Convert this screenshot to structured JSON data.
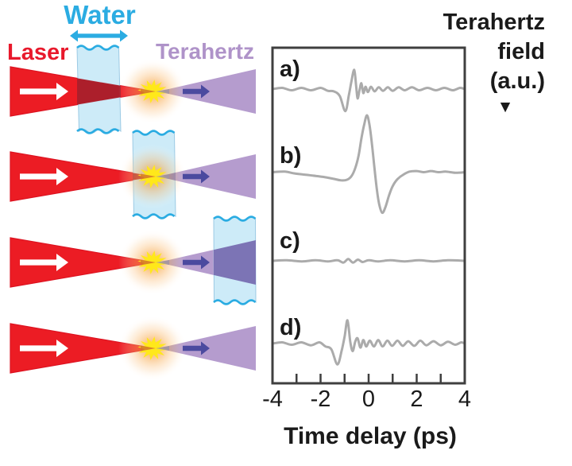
{
  "diagram": {
    "laser_label": "Laser",
    "water_label": "Water",
    "terahertz_label": "Terahertz",
    "colors": {
      "laser_red": "#EC1C24",
      "laser_in_water": "#AC1F2B",
      "water_fill": "#C9E9F8",
      "water_edge": "#2BACE2",
      "water_text": "#2BACE2",
      "laser_text": "#E8192C",
      "terahertz_purple": "#B59CCE",
      "terahertz_near_focus": "#9B93A4",
      "terahertz_in_water": "#7C74B5",
      "terahertz_text": "#AF93C9",
      "focus_star_yellow": "#FFE81A",
      "focus_glow_orange": "#F7941D",
      "beam_arrow_dark": "#4B4A9F",
      "beam_arrow_white": "#FFFFFF"
    },
    "rows": [
      {
        "trace": "a)",
        "water_position": "before-focus"
      },
      {
        "trace": "b)",
        "water_position": "at-focus"
      },
      {
        "trace": "c)",
        "water_position": "after-focus"
      },
      {
        "trace": "d)",
        "water_position": "none"
      }
    ]
  },
  "chart_data": {
    "type": "line",
    "title": "",
    "xlabel": "Time delay (ps)",
    "ylabel_lines": [
      "Terahertz",
      "field",
      "(a.u.)"
    ],
    "ylabel_pointer": "▼",
    "xlim": [
      -4,
      4
    ],
    "ylim_au": [
      -1,
      1.2
    ],
    "grid": false,
    "legend_position": "labels-inside-left",
    "trace_color": "#ABABAB",
    "frame_color": "#3F3F3F",
    "xticks_minor": [
      -4,
      -3,
      -2,
      -1,
      0,
      1,
      2,
      3,
      4
    ],
    "xtick_labels": [
      {
        "t": -4,
        "label": "-4"
      },
      {
        "t": -2,
        "label": "-2"
      },
      {
        "t": 0,
        "label": "0"
      },
      {
        "t": 2,
        "label": "2"
      },
      {
        "t": 4,
        "label": "4"
      }
    ],
    "series": [
      {
        "name": "a)",
        "points": [
          [
            -4,
            0
          ],
          [
            -3.6,
            0.02
          ],
          [
            -3.2,
            -0.02
          ],
          [
            -2.8,
            0.02
          ],
          [
            -2.4,
            -0.02
          ],
          [
            -2.0,
            0.02
          ],
          [
            -1.7,
            -0.03
          ],
          [
            -1.45,
            -0.04
          ],
          [
            -1.2,
            -0.12
          ],
          [
            -0.97,
            -0.38
          ],
          [
            -0.82,
            -0.1
          ],
          [
            -0.72,
            0.12
          ],
          [
            -0.6,
            0.33
          ],
          [
            -0.52,
            0.05
          ],
          [
            -0.46,
            -0.16
          ],
          [
            -0.38,
            -0.02
          ],
          [
            -0.3,
            0.1
          ],
          [
            -0.22,
            -0.07
          ],
          [
            -0.13,
            0.04
          ],
          [
            -0.03,
            -0.05
          ],
          [
            0.1,
            0.04
          ],
          [
            0.25,
            -0.04
          ],
          [
            0.42,
            0.03
          ],
          [
            0.6,
            -0.03
          ],
          [
            0.8,
            0.03
          ],
          [
            1.0,
            -0.03
          ],
          [
            1.25,
            0.03
          ],
          [
            1.5,
            -0.02
          ],
          [
            1.8,
            0.03
          ],
          [
            2.1,
            -0.02
          ],
          [
            2.45,
            0.02
          ],
          [
            2.8,
            -0.02
          ],
          [
            3.15,
            0.02
          ],
          [
            3.5,
            -0.02
          ],
          [
            3.8,
            0.02
          ],
          [
            4,
            0
          ]
        ]
      },
      {
        "name": "b)",
        "points": [
          [
            -4,
            0.02
          ],
          [
            -3.5,
            0.03
          ],
          [
            -3.1,
            0.0
          ],
          [
            -2.7,
            -0.02
          ],
          [
            -2.3,
            -0.04
          ],
          [
            -1.9,
            -0.06
          ],
          [
            -1.5,
            -0.09
          ],
          [
            -1.15,
            -0.12
          ],
          [
            -0.9,
            -0.11
          ],
          [
            -0.7,
            -0.04
          ],
          [
            -0.55,
            0.1
          ],
          [
            -0.42,
            0.3
          ],
          [
            -0.3,
            0.6
          ],
          [
            -0.18,
            0.85
          ],
          [
            -0.07,
            1.0
          ],
          [
            0.03,
            0.85
          ],
          [
            0.14,
            0.5
          ],
          [
            0.24,
            0.1
          ],
          [
            0.35,
            -0.3
          ],
          [
            0.45,
            -0.55
          ],
          [
            0.57,
            -0.68
          ],
          [
            0.7,
            -0.58
          ],
          [
            0.85,
            -0.38
          ],
          [
            1.0,
            -0.22
          ],
          [
            1.2,
            -0.1
          ],
          [
            1.45,
            -0.02
          ],
          [
            1.7,
            0.03
          ],
          [
            2.0,
            0.04
          ],
          [
            2.3,
            0.02
          ],
          [
            2.6,
            0.04
          ],
          [
            2.9,
            0.02
          ],
          [
            3.2,
            0.03
          ],
          [
            3.6,
            0.01
          ],
          [
            4,
            0.02
          ]
        ]
      },
      {
        "name": "c)",
        "points": [
          [
            -4,
            0
          ],
          [
            -3.4,
            0.01
          ],
          [
            -2.8,
            -0.01
          ],
          [
            -2.2,
            0.01
          ],
          [
            -1.7,
            -0.01
          ],
          [
            -1.3,
            0.01
          ],
          [
            -1.05,
            -0.03
          ],
          [
            -0.85,
            0.03
          ],
          [
            -0.65,
            -0.03
          ],
          [
            -0.45,
            0.02
          ],
          [
            -0.25,
            -0.02
          ],
          [
            0,
            0.01
          ],
          [
            0.4,
            -0.01
          ],
          [
            0.9,
            0.01
          ],
          [
            1.5,
            -0.01
          ],
          [
            2.1,
            0.01
          ],
          [
            2.7,
            -0.01
          ],
          [
            3.3,
            0.01
          ],
          [
            4,
            0
          ]
        ]
      },
      {
        "name": "d)",
        "points": [
          [
            -4,
            0
          ],
          [
            -3.6,
            0.02
          ],
          [
            -3.2,
            -0.02
          ],
          [
            -2.8,
            0.02
          ],
          [
            -2.4,
            -0.03
          ],
          [
            -2.05,
            0.02
          ],
          [
            -1.8,
            -0.05
          ],
          [
            -1.55,
            -0.1
          ],
          [
            -1.3,
            -0.36
          ],
          [
            -1.12,
            -0.12
          ],
          [
            -1.0,
            0.12
          ],
          [
            -0.88,
            0.4
          ],
          [
            -0.76,
            0.02
          ],
          [
            -0.66,
            -0.13
          ],
          [
            -0.56,
            0.03
          ],
          [
            -0.46,
            0.09
          ],
          [
            -0.34,
            -0.07
          ],
          [
            -0.22,
            0.06
          ],
          [
            -0.1,
            -0.05
          ],
          [
            0.05,
            0.05
          ],
          [
            0.22,
            -0.05
          ],
          [
            0.4,
            0.06
          ],
          [
            0.58,
            -0.05
          ],
          [
            0.78,
            0.05
          ],
          [
            0.98,
            -0.04
          ],
          [
            1.2,
            0.05
          ],
          [
            1.42,
            -0.04
          ],
          [
            1.65,
            0.04
          ],
          [
            1.9,
            -0.04
          ],
          [
            2.15,
            0.05
          ],
          [
            2.4,
            -0.03
          ],
          [
            2.7,
            0.04
          ],
          [
            3.0,
            -0.03
          ],
          [
            3.3,
            0.03
          ],
          [
            3.6,
            -0.02
          ],
          [
            3.85,
            0.02
          ],
          [
            4,
            0
          ]
        ]
      }
    ]
  }
}
